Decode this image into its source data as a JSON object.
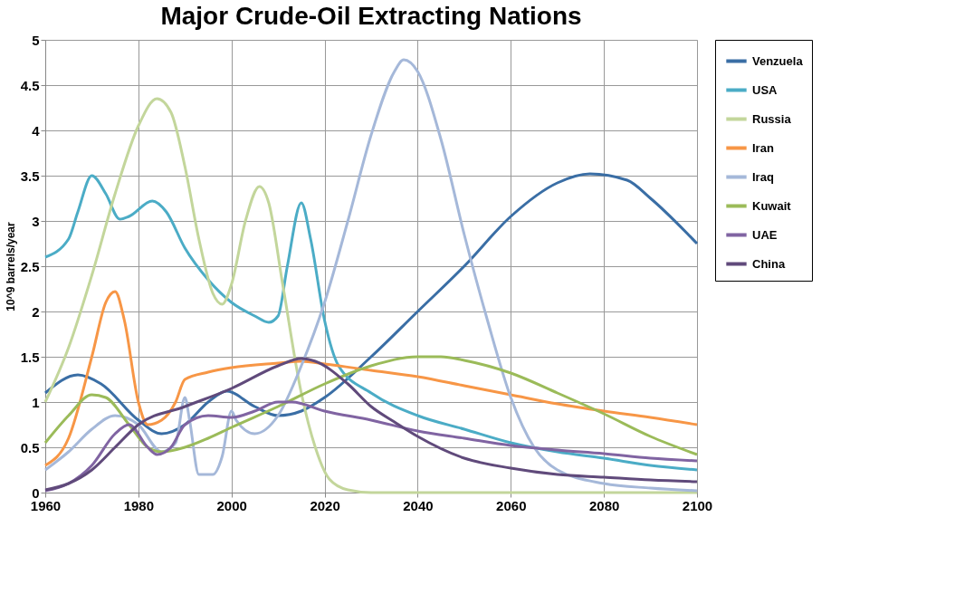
{
  "chart_data": {
    "type": "line",
    "title": "Major Crude-Oil Extracting Nations",
    "ylabel": "10^9 barrels/year",
    "xlim": [
      1960,
      2100
    ],
    "xticks": [
      1960,
      1980,
      2000,
      2020,
      2040,
      2060,
      2080,
      2100
    ],
    "ylim": [
      0,
      5
    ],
    "yticks": [
      0,
      0.5,
      1,
      1.5,
      2,
      2.5,
      3,
      3.5,
      4,
      4.5,
      5
    ],
    "grid": true,
    "legend": "right",
    "marker": "none",
    "line_style": "solid",
    "series": [
      {
        "name": "Venzuela",
        "color": "#3a6ea5",
        "x": [
          1960,
          1967,
          1972,
          1980,
          1985,
          1990,
          1995,
          1999,
          2005,
          2010,
          2015,
          2020,
          2030,
          2040,
          2050,
          2060,
          2070,
          2077,
          2085,
          2090,
          2100
        ],
        "values": [
          1.1,
          1.3,
          1.2,
          0.8,
          0.65,
          0.75,
          1.0,
          1.12,
          0.95,
          0.85,
          0.9,
          1.05,
          1.5,
          2.0,
          2.5,
          3.05,
          3.42,
          3.52,
          3.45,
          3.25,
          2.75
        ]
      },
      {
        "name": "USA",
        "color": "#4bacc6",
        "x": [
          1960,
          1965,
          1967,
          1970,
          1973,
          1976,
          1978,
          1983,
          1986,
          1990,
          1995,
          2000,
          2005,
          2008,
          2010,
          2012,
          2015,
          2017,
          2020,
          2023,
          2030,
          2040,
          2050,
          2060,
          2070,
          2080,
          2090,
          2100
        ],
        "values": [
          2.6,
          2.8,
          3.1,
          3.5,
          3.3,
          3.02,
          3.05,
          3.22,
          3.1,
          2.7,
          2.35,
          2.1,
          1.95,
          1.88,
          1.95,
          2.5,
          3.2,
          2.8,
          1.9,
          1.4,
          1.1,
          0.85,
          0.7,
          0.55,
          0.45,
          0.38,
          0.3,
          0.25
        ]
      },
      {
        "name": "Russia",
        "color": "#c3d69b",
        "x": [
          1960,
          1965,
          1970,
          1975,
          1980,
          1984,
          1987,
          1990,
          1993,
          1996,
          1998,
          2000,
          2003,
          2006,
          2008,
          2011,
          2015,
          2018,
          2021,
          2025,
          2030,
          2100
        ],
        "values": [
          1.0,
          1.6,
          2.4,
          3.3,
          4.05,
          4.35,
          4.2,
          3.6,
          2.8,
          2.2,
          2.08,
          2.3,
          3.0,
          3.38,
          3.2,
          2.3,
          1.1,
          0.5,
          0.15,
          0.03,
          0,
          0
        ]
      },
      {
        "name": "Iran",
        "color": "#f79646",
        "x": [
          1960,
          1965,
          1970,
          1973,
          1975,
          1977,
          1980,
          1982,
          1985,
          1988,
          1990,
          1995,
          2000,
          2010,
          2015,
          2020,
          2030,
          2040,
          2050,
          2060,
          2070,
          2080,
          2090,
          2100
        ],
        "values": [
          0.3,
          0.6,
          1.5,
          2.1,
          2.22,
          1.9,
          1.0,
          0.75,
          0.8,
          1.0,
          1.25,
          1.33,
          1.38,
          1.43,
          1.45,
          1.42,
          1.35,
          1.28,
          1.18,
          1.08,
          0.98,
          0.9,
          0.83,
          0.75
        ]
      },
      {
        "name": "Iraq",
        "color": "#a5b8d9",
        "x": [
          1960,
          1965,
          1970,
          1975,
          1980,
          1985,
          1988,
          1990,
          1991,
          1993,
          1996,
          1998,
          2000,
          2001,
          2005,
          2010,
          2015,
          2020,
          2025,
          2030,
          2035,
          2037,
          2040,
          2045,
          2050,
          2055,
          2060,
          2065,
          2070,
          2080,
          2090,
          2100
        ],
        "values": [
          0.25,
          0.45,
          0.7,
          0.85,
          0.75,
          0.45,
          0.55,
          1.05,
          0.8,
          0.2,
          0.2,
          0.4,
          0.9,
          0.8,
          0.65,
          0.85,
          1.4,
          2.1,
          3.0,
          3.95,
          4.65,
          4.78,
          4.65,
          3.9,
          2.85,
          1.9,
          1.05,
          0.5,
          0.25,
          0.1,
          0.05,
          0.02
        ]
      },
      {
        "name": "Kuwait",
        "color": "#9bbb59",
        "x": [
          1960,
          1965,
          1970,
          1973,
          1978,
          1982,
          1985,
          1990,
          1995,
          2000,
          2010,
          2020,
          2030,
          2040,
          2045,
          2050,
          2060,
          2070,
          2080,
          2090,
          2100
        ],
        "values": [
          0.55,
          0.85,
          1.08,
          1.05,
          0.75,
          0.5,
          0.45,
          0.5,
          0.6,
          0.72,
          0.95,
          1.2,
          1.4,
          1.5,
          1.5,
          1.46,
          1.32,
          1.1,
          0.87,
          0.62,
          0.42
        ]
      },
      {
        "name": "UAE",
        "color": "#8064a2",
        "x": [
          1960,
          1965,
          1970,
          1975,
          1978,
          1982,
          1984,
          1987,
          1990,
          1995,
          2000,
          2005,
          2010,
          2013,
          2020,
          2030,
          2040,
          2050,
          2060,
          2070,
          2080,
          2090,
          2100
        ],
        "values": [
          0.02,
          0.1,
          0.3,
          0.65,
          0.75,
          0.5,
          0.42,
          0.5,
          0.75,
          0.85,
          0.83,
          0.9,
          1.0,
          1.0,
          0.9,
          0.8,
          0.68,
          0.6,
          0.52,
          0.47,
          0.43,
          0.38,
          0.35
        ]
      },
      {
        "name": "China",
        "color": "#604a7b",
        "x": [
          1960,
          1965,
          1970,
          1975,
          1980,
          1990,
          2000,
          2010,
          2015,
          2018,
          2025,
          2030,
          2035,
          2040,
          2050,
          2060,
          2070,
          2080,
          2090,
          2100
        ],
        "values": [
          0.03,
          0.1,
          0.25,
          0.5,
          0.75,
          0.95,
          1.15,
          1.4,
          1.48,
          1.45,
          1.2,
          0.95,
          0.78,
          0.62,
          0.38,
          0.27,
          0.2,
          0.17,
          0.14,
          0.12
        ]
      }
    ]
  }
}
